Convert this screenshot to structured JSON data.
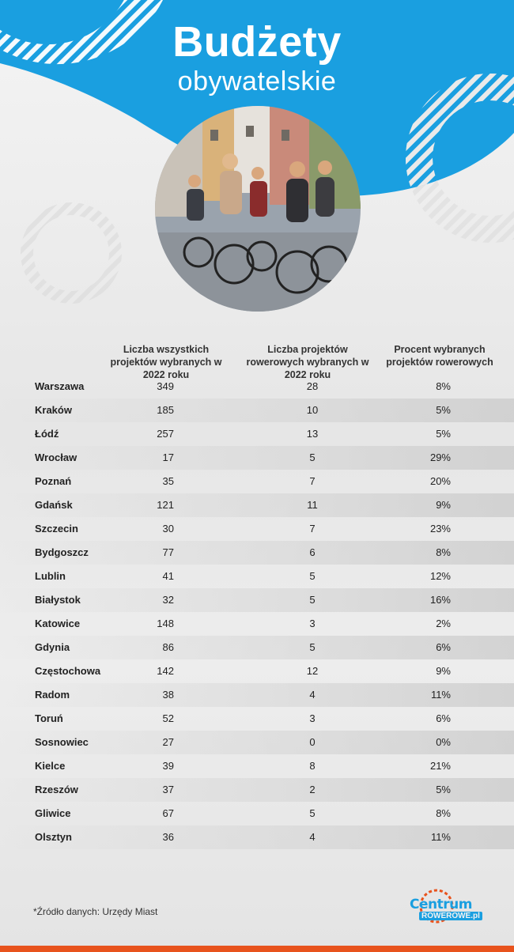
{
  "header": {
    "title": "Budżety",
    "subtitle": "obywatelskie"
  },
  "colors": {
    "brand_blue": "#1a9fe0",
    "accent_orange": "#e8531d"
  },
  "columns": {
    "all_projects": "Liczba wszystkich projektów wybranych w 2022 roku",
    "bike_projects": "Liczba projektów rowerowych wybranych w 2022 roku",
    "percent": "Procent wybranych projektów rowerowych"
  },
  "rows": [
    {
      "city": "Warszawa",
      "all": "349",
      "bike": "28",
      "pct": "8%"
    },
    {
      "city": "Kraków",
      "all": "185",
      "bike": "10",
      "pct": "5%"
    },
    {
      "city": "Łódź",
      "all": "257",
      "bike": "13",
      "pct": "5%"
    },
    {
      "city": "Wrocław",
      "all": "17",
      "bike": "5",
      "pct": "29%"
    },
    {
      "city": "Poznań",
      "all": "35",
      "bike": "7",
      "pct": "20%"
    },
    {
      "city": "Gdańsk",
      "all": "121",
      "bike": "11",
      "pct": "9%"
    },
    {
      "city": "Szczecin",
      "all": "30",
      "bike": "7",
      "pct": "23%"
    },
    {
      "city": "Bydgoszcz",
      "all": "77",
      "bike": "6",
      "pct": "8%"
    },
    {
      "city": "Lublin",
      "all": "41",
      "bike": "5",
      "pct": "12%"
    },
    {
      "city": "Białystok",
      "all": "32",
      "bike": "5",
      "pct": "16%"
    },
    {
      "city": "Katowice",
      "all": "148",
      "bike": "3",
      "pct": "2%"
    },
    {
      "city": "Gdynia",
      "all": "86",
      "bike": "5",
      "pct": "6%"
    },
    {
      "city": "Częstochowa",
      "all": "142",
      "bike": "12",
      "pct": "9%"
    },
    {
      "city": "Radom",
      "all": "38",
      "bike": "4",
      "pct": "11%"
    },
    {
      "city": "Toruń",
      "all": "52",
      "bike": "3",
      "pct": "6%"
    },
    {
      "city": "Sosnowiec",
      "all": "27",
      "bike": "0",
      "pct": "0%"
    },
    {
      "city": "Kielce",
      "all": "39",
      "bike": "8",
      "pct": "21%"
    },
    {
      "city": "Rzeszów",
      "all": "37",
      "bike": "2",
      "pct": "5%"
    },
    {
      "city": "Gliwice",
      "all": "67",
      "bike": "5",
      "pct": "8%"
    },
    {
      "city": "Olsztyn",
      "all": "36",
      "bike": "4",
      "pct": "11%"
    }
  ],
  "footer": {
    "source_note": "*Źródło danych: Urzędy Miast",
    "logo_top": "Centrum",
    "logo_bottom": "ROWEROWE.pl"
  },
  "icons": {
    "photo": "cyclists-street-photo",
    "logo": "centrum-rowerowe-logo"
  }
}
